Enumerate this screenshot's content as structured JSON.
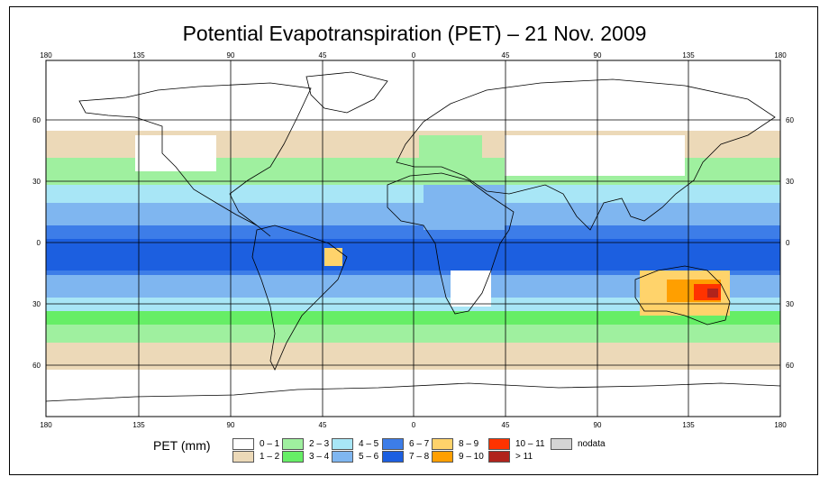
{
  "title": "Potential Evapotranspiration (PET) – 21 Nov. 2009",
  "map": {
    "lon_labels": [
      "180",
      "135",
      "90",
      "45",
      "0",
      "45",
      "90",
      "135",
      "180"
    ],
    "lat_labels": [
      "60",
      "30",
      "0",
      "30",
      "60"
    ]
  },
  "legend": {
    "title": "PET (mm)",
    "classes": [
      {
        "label": "0 – 1",
        "color": "#ffffff"
      },
      {
        "label": "1 – 2",
        "color": "#ecd9b8"
      },
      {
        "label": "2 – 3",
        "color": "#9ff09f"
      },
      {
        "label": "3 – 4",
        "color": "#66ee66"
      },
      {
        "label": "4 – 5",
        "color": "#a8e6f6"
      },
      {
        "label": "5 – 6",
        "color": "#7fb6f0"
      },
      {
        "label": "6 – 7",
        "color": "#3d7de8"
      },
      {
        "label": "7 – 8",
        "color": "#1c5fe0"
      },
      {
        "label": "8 – 9",
        "color": "#ffd36b"
      },
      {
        "label": "9 – 10",
        "color": "#ff9f00"
      },
      {
        "label": "10 – 11",
        "color": "#ff3300"
      },
      {
        "label": "> 11",
        "color": "#b0231c"
      },
      {
        "label": "nodata",
        "color": "#d4d4d4"
      }
    ]
  }
}
